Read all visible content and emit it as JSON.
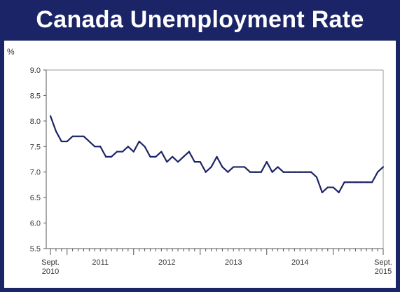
{
  "header": {
    "title": "Canada Unemployment Rate"
  },
  "chart_data": {
    "type": "line",
    "title": "Canada Unemployment Rate",
    "ylabel": "%",
    "xlabel": "",
    "ylim": [
      5.5,
      9.0
    ],
    "yticks": [
      "9.0",
      "8.5",
      "8.0",
      "7.5",
      "7.0",
      "6.5",
      "6.0",
      "5.5"
    ],
    "xlabels": [
      {
        "label": "Sept.",
        "sub": "2010",
        "month": 0
      },
      {
        "label": "2011",
        "sub": "",
        "month": 9
      },
      {
        "label": "2012",
        "sub": "",
        "month": 21
      },
      {
        "label": "2013",
        "sub": "",
        "month": 33
      },
      {
        "label": "2014",
        "sub": "",
        "month": 45
      },
      {
        "label": "Sept.",
        "sub": "2015",
        "month": 60
      }
    ],
    "x_start": "Sept. 2010",
    "x_end": "Sept. 2015",
    "grid": false,
    "line_color": "#1b2466",
    "series": [
      {
        "values": [
          8.1,
          7.8,
          7.6,
          7.6,
          7.7,
          7.7,
          7.7,
          7.6,
          7.5,
          7.5,
          7.3,
          7.3,
          7.4,
          7.4,
          7.5,
          7.4,
          7.6,
          7.5,
          7.3,
          7.3,
          7.4,
          7.2,
          7.3,
          7.2,
          7.3,
          7.4,
          7.2,
          7.2,
          7.0,
          7.1,
          7.3,
          7.1,
          7.0,
          7.1,
          7.1,
          7.1,
          7.0,
          7.0,
          7.0,
          7.2,
          7.0,
          7.1,
          7.0,
          7.0,
          7.0,
          7.0,
          7.0,
          7.0,
          6.9,
          6.6,
          6.7,
          6.7,
          6.6,
          6.8,
          6.8,
          6.8,
          6.8,
          6.8,
          6.8,
          7.0,
          7.1
        ]
      }
    ]
  }
}
